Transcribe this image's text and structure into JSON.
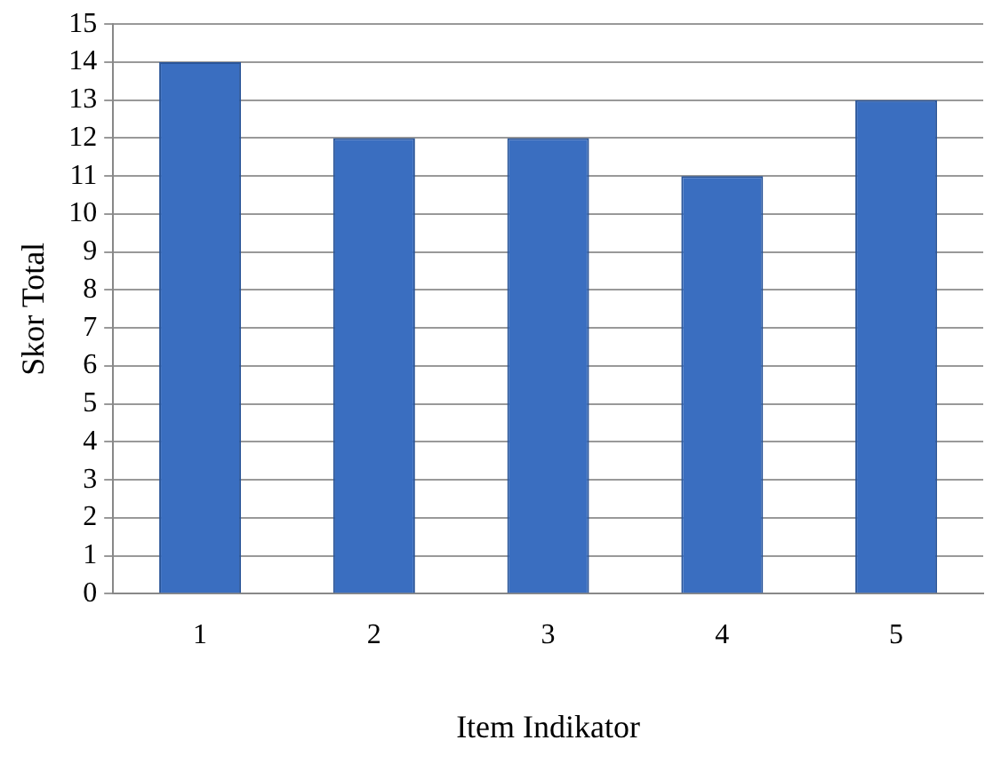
{
  "chart_data": {
    "type": "bar",
    "xlabel": "Item Indikator",
    "ylabel": "Skor Total",
    "categories": [
      "1",
      "2",
      "3",
      "4",
      "5"
    ],
    "values": [
      14,
      12,
      12,
      11,
      13
    ],
    "color": "#3a6ec0",
    "ylim": [
      0,
      15
    ],
    "yticks": [
      0,
      1,
      2,
      3,
      4,
      5,
      6,
      7,
      8,
      9,
      10,
      11,
      12,
      13,
      14,
      15
    ],
    "grid": "y",
    "legend": false
  }
}
